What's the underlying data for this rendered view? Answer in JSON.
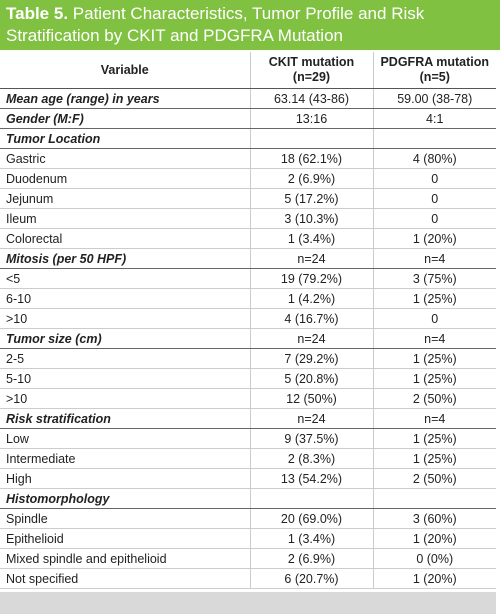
{
  "title": {
    "label": "Table 5.",
    "text": "Patient Characteristics, Tumor Profile and Risk Stratification by CKIT and PDGFRA Mutation"
  },
  "table": {
    "header": [
      [
        "Variable"
      ],
      [
        "CKIT mutation",
        "(n=29)"
      ],
      [
        "PDGFRA mutation",
        "(n=5)"
      ]
    ],
    "rows": [
      {
        "heading": true,
        "cells": [
          "Mean age (range) in years",
          "63.14 (43-86)",
          "59.00 (38-78)"
        ]
      },
      {
        "heading": true,
        "cells": [
          "Gender (M:F)",
          "13:16",
          "4:1"
        ]
      },
      {
        "heading": true,
        "cells": [
          "Tumor Location",
          "",
          ""
        ]
      },
      {
        "cells": [
          "Gastric",
          "18 (62.1%)",
          "4 (80%)"
        ]
      },
      {
        "cells": [
          "Duodenum",
          "2 (6.9%)",
          "0"
        ]
      },
      {
        "cells": [
          "Jejunum",
          "5 (17.2%)",
          "0"
        ]
      },
      {
        "cells": [
          "Ileum",
          "3 (10.3%)",
          "0"
        ]
      },
      {
        "cells": [
          "Colorectal",
          "1 (3.4%)",
          "1 (20%)"
        ]
      },
      {
        "heading": true,
        "cells": [
          "Mitosis (per 50 HPF)",
          "n=24",
          "n=4"
        ]
      },
      {
        "cells": [
          "<5",
          "19 (79.2%)",
          "3 (75%)"
        ]
      },
      {
        "cells": [
          "6-10",
          "1 (4.2%)",
          "1 (25%)"
        ]
      },
      {
        "cells": [
          ">10",
          "4 (16.7%)",
          "0"
        ]
      },
      {
        "heading": true,
        "cells": [
          "Tumor size (cm)",
          "n=24",
          "n=4"
        ]
      },
      {
        "cells": [
          "2-5",
          "7 (29.2%)",
          "1 (25%)"
        ]
      },
      {
        "cells": [
          "5-10",
          "5 (20.8%)",
          "1 (25%)"
        ]
      },
      {
        "cells": [
          ">10",
          "12 (50%)",
          "2 (50%)"
        ]
      },
      {
        "heading": true,
        "cells": [
          "Risk stratification",
          "n=24",
          "n=4"
        ]
      },
      {
        "cells": [
          "Low",
          "9 (37.5%)",
          "1 (25%)"
        ]
      },
      {
        "cells": [
          "Intermediate",
          "2 (8.3%)",
          "1 (25%)"
        ]
      },
      {
        "cells": [
          "High",
          "13 (54.2%)",
          "2 (50%)"
        ]
      },
      {
        "heading": true,
        "cells": [
          "Histomorphology",
          "",
          ""
        ]
      },
      {
        "cells": [
          "Spindle",
          "20 (69.0%)",
          "3 (60%)"
        ]
      },
      {
        "cells": [
          "Epithelioid",
          "1 (3.4%)",
          "1 (20%)"
        ]
      },
      {
        "cells": [
          "Mixed spindle and epithelioid",
          "2 (6.9%)",
          "0 (0%)"
        ]
      },
      {
        "cells": [
          "Not specified",
          "6 (20.7%)",
          "1 (20%)"
        ]
      }
    ]
  }
}
